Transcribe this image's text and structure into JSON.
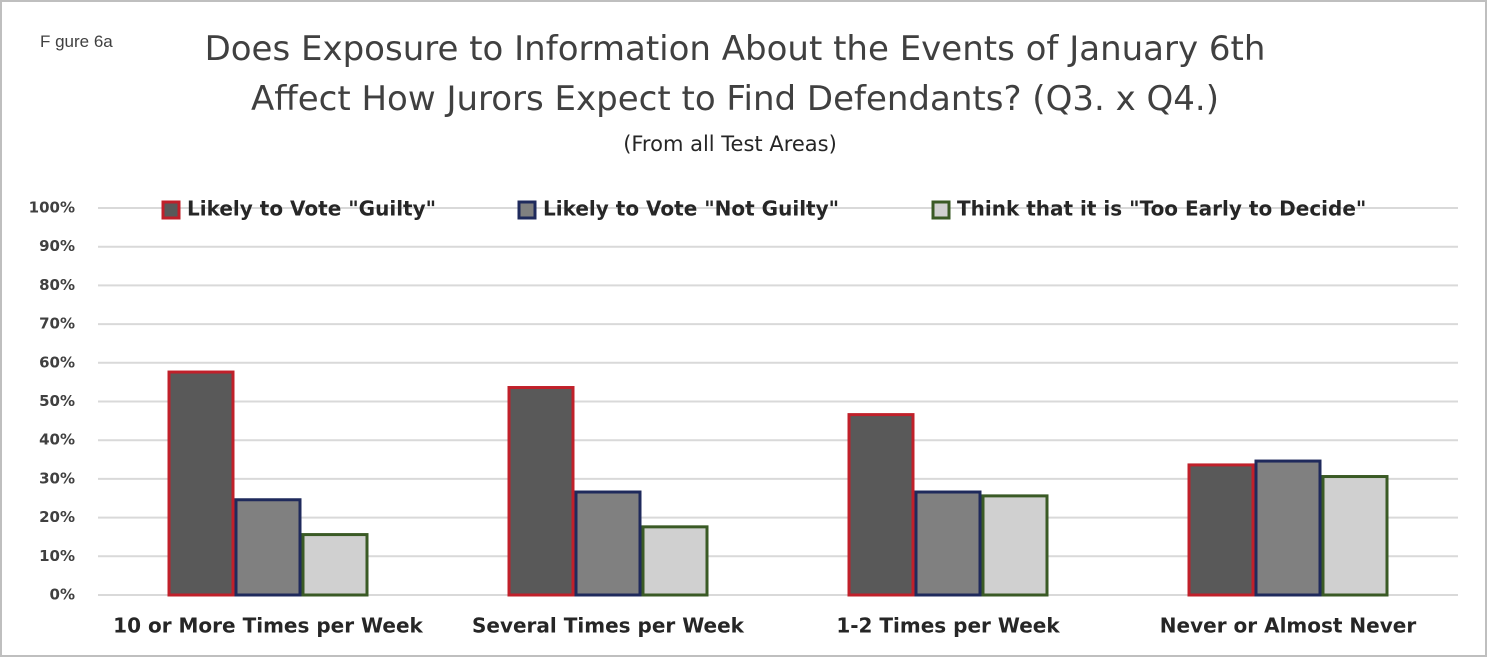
{
  "figure_label": "F gure 6a",
  "chart_data": {
    "type": "bar",
    "title": "Does Exposure to Information About the Events of January 6th Affect How Jurors Expect to Find Defendants? (Q3. x Q4.)",
    "subtitle": "(From all Test Areas)",
    "categories": [
      "10 or More Times per Week",
      "Several Times per Week",
      "1-2 Times per Week",
      "Never or Almost Never"
    ],
    "series": [
      {
        "name": "Likely to Vote \"Guilty\"",
        "color": "#595959",
        "edge_color": "#c0202a",
        "values": [
          58,
          54,
          47,
          34
        ]
      },
      {
        "name": "Likely to Vote \"Not Guilty\"",
        "color": "#808080",
        "edge_color": "#1f2a5c",
        "values": [
          25,
          27,
          27,
          35
        ]
      },
      {
        "name": "Think that it is \"Too Early to Decide\"",
        "color": "#d0d0d0",
        "edge_color": "#3a5a25",
        "values": [
          16,
          18,
          26,
          31
        ]
      }
    ],
    "ylim": [
      0,
      100
    ],
    "yticks": [
      {
        "value": 0,
        "label": "0%"
      },
      {
        "value": 10,
        "label": "10%"
      },
      {
        "value": 20,
        "label": "20%"
      },
      {
        "value": 30,
        "label": "30%"
      },
      {
        "value": 40,
        "label": "40%"
      },
      {
        "value": 50,
        "label": "50%"
      },
      {
        "value": 60,
        "label": "60%"
      },
      {
        "value": 70,
        "label": "70%"
      },
      {
        "value": 80,
        "label": "80%"
      },
      {
        "value": 90,
        "label": "90%"
      },
      {
        "value": 100,
        "label": "100%"
      }
    ],
    "grid": true,
    "legend": "top"
  }
}
